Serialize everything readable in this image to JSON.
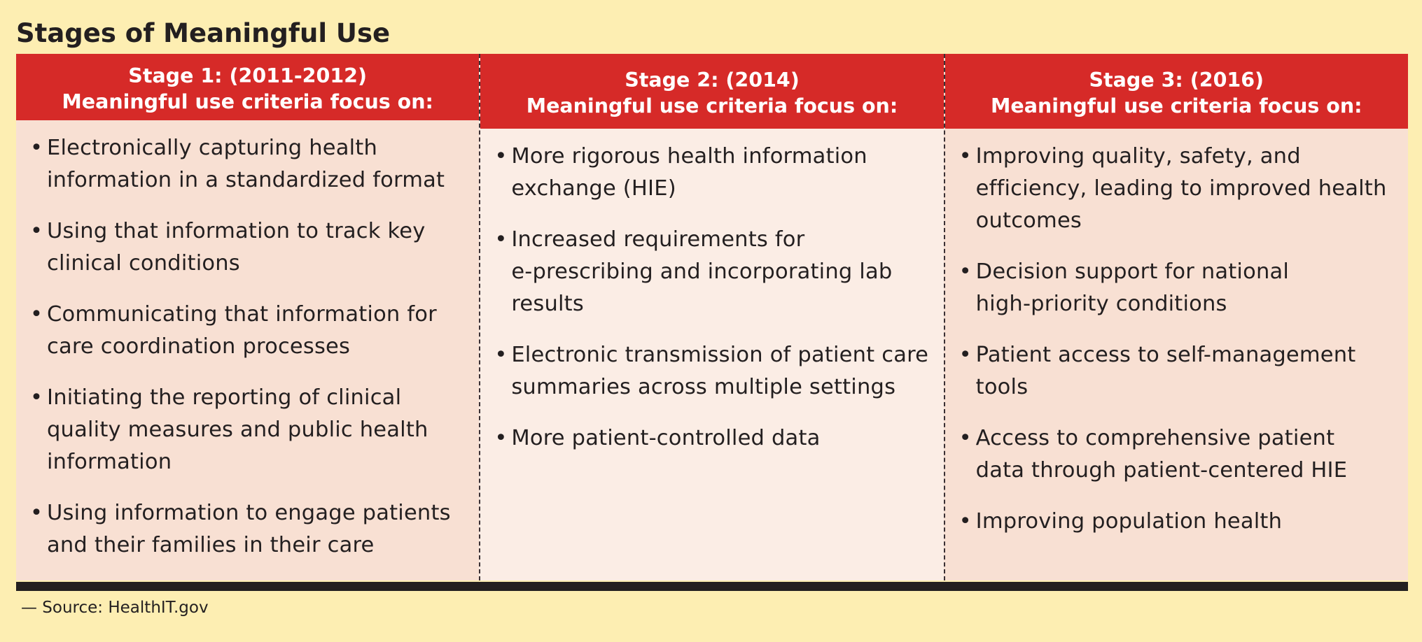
{
  "title": "Stages of Meaningful Use",
  "stages": [
    {
      "heading": "Stage 1: (2011-2012)",
      "subheading": "Meaningful use criteria focus on:",
      "items": [
        "Electronically capturing health\ninformation in a standardized format",
        "Using that information to track key\nclinical conditions",
        "Communicating that information for\ncare coordination processes",
        "Initiating the reporting of clinical\nquality measures and public health\ninformation",
        "Using information to engage patients\nand their families in their care"
      ]
    },
    {
      "heading": "Stage 2: (2014)",
      "subheading": "Meaningful use criteria focus on:",
      "items": [
        "More rigorous health information\nexchange (HIE)",
        "Increased requirements for\ne-prescribing and incorporating lab\nresults",
        "Electronic transmission of patient care\nsummaries across multiple settings",
        "More patient-controlled data"
      ]
    },
    {
      "heading": "Stage 3: (2016)",
      "subheading": "Meaningful use criteria focus on:",
      "items": [
        "Improving quality, safety, and\nefficiency, leading to improved health\noutcomes",
        "Decision support for national\nhigh-priority conditions",
        "Patient access to self-management\ntools",
        "Access to comprehensive patient\ndata through patient-centered HIE",
        "Improving population health"
      ]
    }
  ],
  "source": "— Source: HealthIT.gov",
  "colors": {
    "background": "#fdeeb2",
    "header": "#d62a28",
    "cell_light": "#fbede5",
    "cell_dark": "#f8e0d3",
    "text": "#231f20"
  }
}
